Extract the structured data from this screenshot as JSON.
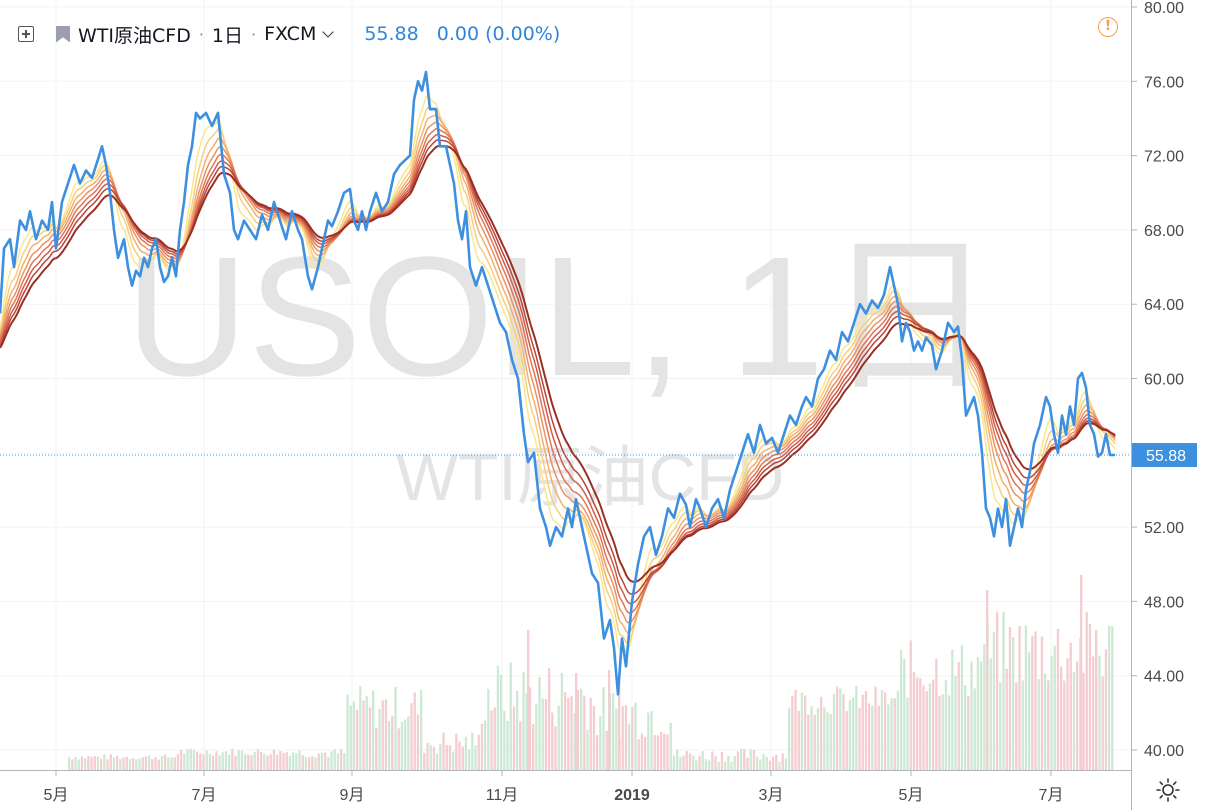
{
  "header": {
    "symbol": "WTI原油CFD",
    "interval": "1日",
    "exchange": "FXCM",
    "price": "55.88",
    "change": "0.00 (0.00%)"
  },
  "watermark": {
    "line1": "USOIL, 1日",
    "line2": "WTI原油CFD"
  },
  "colors": {
    "price_line": "#3d8fe0",
    "ribbon": [
      "#fbe68a",
      "#f6cf7e",
      "#f2b070",
      "#ea9262",
      "#e07558",
      "#d05c4a",
      "#b8453a",
      "#9a3024"
    ],
    "volume_up": "#cde8d3",
    "volume_down": "#f4cdd0",
    "last_price_badge": "#3d8fe0"
  },
  "chart_data": {
    "type": "line",
    "ylim": [
      39,
      80
    ],
    "yticks": [
      "80.00",
      "76.00",
      "72.00",
      "68.00",
      "64.00",
      "60.00",
      "56.00",
      "52.00",
      "48.00",
      "44.00",
      "40.00"
    ],
    "xticks": [
      "5月",
      "7月",
      "9月",
      "11月",
      "2019",
      "3月",
      "5月",
      "7月"
    ],
    "last_price_label": "55.88",
    "series": [
      {
        "values": [
          [
            0,
            63.5
          ],
          [
            4,
            67
          ],
          [
            10,
            67.5
          ],
          [
            14,
            66
          ],
          [
            20,
            68.5
          ],
          [
            26,
            68
          ],
          [
            30,
            69
          ],
          [
            36,
            67.5
          ],
          [
            42,
            68.5
          ],
          [
            48,
            68
          ],
          [
            52,
            69.5
          ],
          [
            56,
            67
          ],
          [
            62,
            69.5
          ],
          [
            68,
            70.5
          ],
          [
            74,
            71.5
          ],
          [
            80,
            70.5
          ],
          [
            86,
            71.2
          ],
          [
            92,
            70.8
          ],
          [
            98,
            71.8
          ],
          [
            102,
            72.5
          ],
          [
            106,
            71.5
          ],
          [
            110,
            70
          ],
          [
            114,
            68
          ],
          [
            118,
            66.5
          ],
          [
            124,
            67.5
          ],
          [
            128,
            66
          ],
          [
            132,
            65
          ],
          [
            136,
            65.8
          ],
          [
            140,
            65.5
          ],
          [
            144,
            66.5
          ],
          [
            148,
            66
          ],
          [
            152,
            67
          ],
          [
            156,
            67.5
          ],
          [
            160,
            66
          ],
          [
            164,
            65.2
          ],
          [
            168,
            65.5
          ],
          [
            172,
            66.5
          ],
          [
            176,
            65.5
          ],
          [
            180,
            68
          ],
          [
            184,
            69.5
          ],
          [
            188,
            71.5
          ],
          [
            192,
            72.5
          ],
          [
            196,
            74.3
          ],
          [
            200,
            74
          ],
          [
            206,
            74.3
          ],
          [
            212,
            73.6
          ],
          [
            218,
            74.3
          ],
          [
            224,
            71
          ],
          [
            230,
            70
          ],
          [
            234,
            68
          ],
          [
            238,
            67.5
          ],
          [
            244,
            68.5
          ],
          [
            250,
            68
          ],
          [
            256,
            67.5
          ],
          [
            262,
            68.8
          ],
          [
            268,
            68
          ],
          [
            274,
            69.5
          ],
          [
            280,
            68.5
          ],
          [
            286,
            67.5
          ],
          [
            292,
            69
          ],
          [
            298,
            68
          ],
          [
            302,
            67.5
          ],
          [
            308,
            65.5
          ],
          [
            312,
            64.8
          ],
          [
            318,
            66
          ],
          [
            324,
            67.5
          ],
          [
            328,
            68.5
          ],
          [
            332,
            68.2
          ],
          [
            338,
            69
          ],
          [
            344,
            70
          ],
          [
            350,
            70.2
          ],
          [
            354,
            68.5
          ],
          [
            358,
            68
          ],
          [
            362,
            69
          ],
          [
            366,
            68
          ],
          [
            370,
            69
          ],
          [
            376,
            70
          ],
          [
            382,
            69
          ],
          [
            388,
            69.5
          ],
          [
            394,
            71
          ],
          [
            400,
            71.5
          ],
          [
            406,
            71.8
          ],
          [
            410,
            72
          ],
          [
            414,
            75
          ],
          [
            418,
            76
          ],
          [
            422,
            75.5
          ],
          [
            426,
            76.5
          ],
          [
            430,
            74.5
          ],
          [
            436,
            74.5
          ],
          [
            440,
            72.5
          ],
          [
            446,
            72.5
          ],
          [
            450,
            71.5
          ],
          [
            454,
            70.5
          ],
          [
            458,
            68.5
          ],
          [
            462,
            67.5
          ],
          [
            466,
            69
          ],
          [
            470,
            66
          ],
          [
            476,
            65
          ],
          [
            482,
            66
          ],
          [
            488,
            65
          ],
          [
            494,
            64
          ],
          [
            500,
            63
          ],
          [
            506,
            62.5
          ],
          [
            512,
            61
          ],
          [
            518,
            60
          ],
          [
            524,
            57
          ],
          [
            528,
            55.5
          ],
          [
            534,
            56
          ],
          [
            540,
            53
          ],
          [
            546,
            52
          ],
          [
            550,
            51
          ],
          [
            556,
            52
          ],
          [
            562,
            51.5
          ],
          [
            568,
            53
          ],
          [
            572,
            52
          ],
          [
            576,
            53.5
          ],
          [
            580,
            52.5
          ],
          [
            586,
            51
          ],
          [
            592,
            49.5
          ],
          [
            598,
            49
          ],
          [
            604,
            46
          ],
          [
            610,
            47
          ],
          [
            614,
            45.5
          ],
          [
            618,
            43
          ],
          [
            622,
            46
          ],
          [
            626,
            44.5
          ],
          [
            632,
            48
          ],
          [
            638,
            50
          ],
          [
            644,
            51.5
          ],
          [
            650,
            52
          ],
          [
            656,
            50.5
          ],
          [
            662,
            51.5
          ],
          [
            668,
            53
          ],
          [
            674,
            52.5
          ],
          [
            680,
            53.8
          ],
          [
            686,
            53.2
          ],
          [
            690,
            52
          ],
          [
            696,
            53.5
          ],
          [
            700,
            53
          ],
          [
            706,
            52
          ],
          [
            712,
            53
          ],
          [
            718,
            53.5
          ],
          [
            724,
            52.5
          ],
          [
            730,
            54
          ],
          [
            736,
            55
          ],
          [
            742,
            56
          ],
          [
            748,
            57
          ],
          [
            754,
            56
          ],
          [
            760,
            57.5
          ],
          [
            766,
            56.5
          ],
          [
            772,
            56.8
          ],
          [
            778,
            56
          ],
          [
            784,
            57
          ],
          [
            790,
            58
          ],
          [
            796,
            57.5
          ],
          [
            802,
            58.5
          ],
          [
            806,
            59
          ],
          [
            812,
            58.5
          ],
          [
            818,
            60
          ],
          [
            824,
            60.5
          ],
          [
            830,
            61.5
          ],
          [
            836,
            61
          ],
          [
            842,
            62.5
          ],
          [
            848,
            62
          ],
          [
            854,
            63
          ],
          [
            860,
            64
          ],
          [
            866,
            63.5
          ],
          [
            872,
            64.2
          ],
          [
            878,
            63.8
          ],
          [
            884,
            64.5
          ],
          [
            890,
            66
          ],
          [
            894,
            65
          ],
          [
            898,
            64
          ],
          [
            902,
            62
          ],
          [
            906,
            63
          ],
          [
            910,
            62.5
          ],
          [
            914,
            61.5
          ],
          [
            918,
            62
          ],
          [
            922,
            61.5
          ],
          [
            926,
            62.2
          ],
          [
            932,
            61.8
          ],
          [
            936,
            60.5
          ],
          [
            942,
            61.5
          ],
          [
            948,
            63
          ],
          [
            954,
            62.5
          ],
          [
            958,
            62.8
          ],
          [
            962,
            61
          ],
          [
            966,
            58
          ],
          [
            970,
            58.5
          ],
          [
            974,
            59
          ],
          [
            978,
            58
          ],
          [
            982,
            56
          ],
          [
            986,
            53
          ],
          [
            990,
            52.5
          ],
          [
            994,
            51.5
          ],
          [
            998,
            53
          ],
          [
            1002,
            52
          ],
          [
            1006,
            53.5
          ],
          [
            1010,
            51
          ],
          [
            1014,
            52
          ],
          [
            1018,
            53
          ],
          [
            1022,
            52
          ],
          [
            1026,
            54
          ],
          [
            1030,
            55
          ],
          [
            1034,
            56.5
          ],
          [
            1040,
            57.5
          ],
          [
            1046,
            59
          ],
          [
            1050,
            58.5
          ],
          [
            1054,
            57
          ],
          [
            1058,
            56
          ],
          [
            1062,
            58
          ],
          [
            1066,
            57
          ],
          [
            1070,
            58.5
          ],
          [
            1074,
            57.5
          ],
          [
            1078,
            60
          ],
          [
            1082,
            60.3
          ],
          [
            1086,
            59.5
          ],
          [
            1090,
            57.5
          ],
          [
            1094,
            57
          ],
          [
            1098,
            55.8
          ],
          [
            1102,
            56
          ],
          [
            1106,
            57
          ],
          [
            1110,
            55.88
          ],
          [
            1115,
            55.88
          ]
        ]
      }
    ]
  }
}
